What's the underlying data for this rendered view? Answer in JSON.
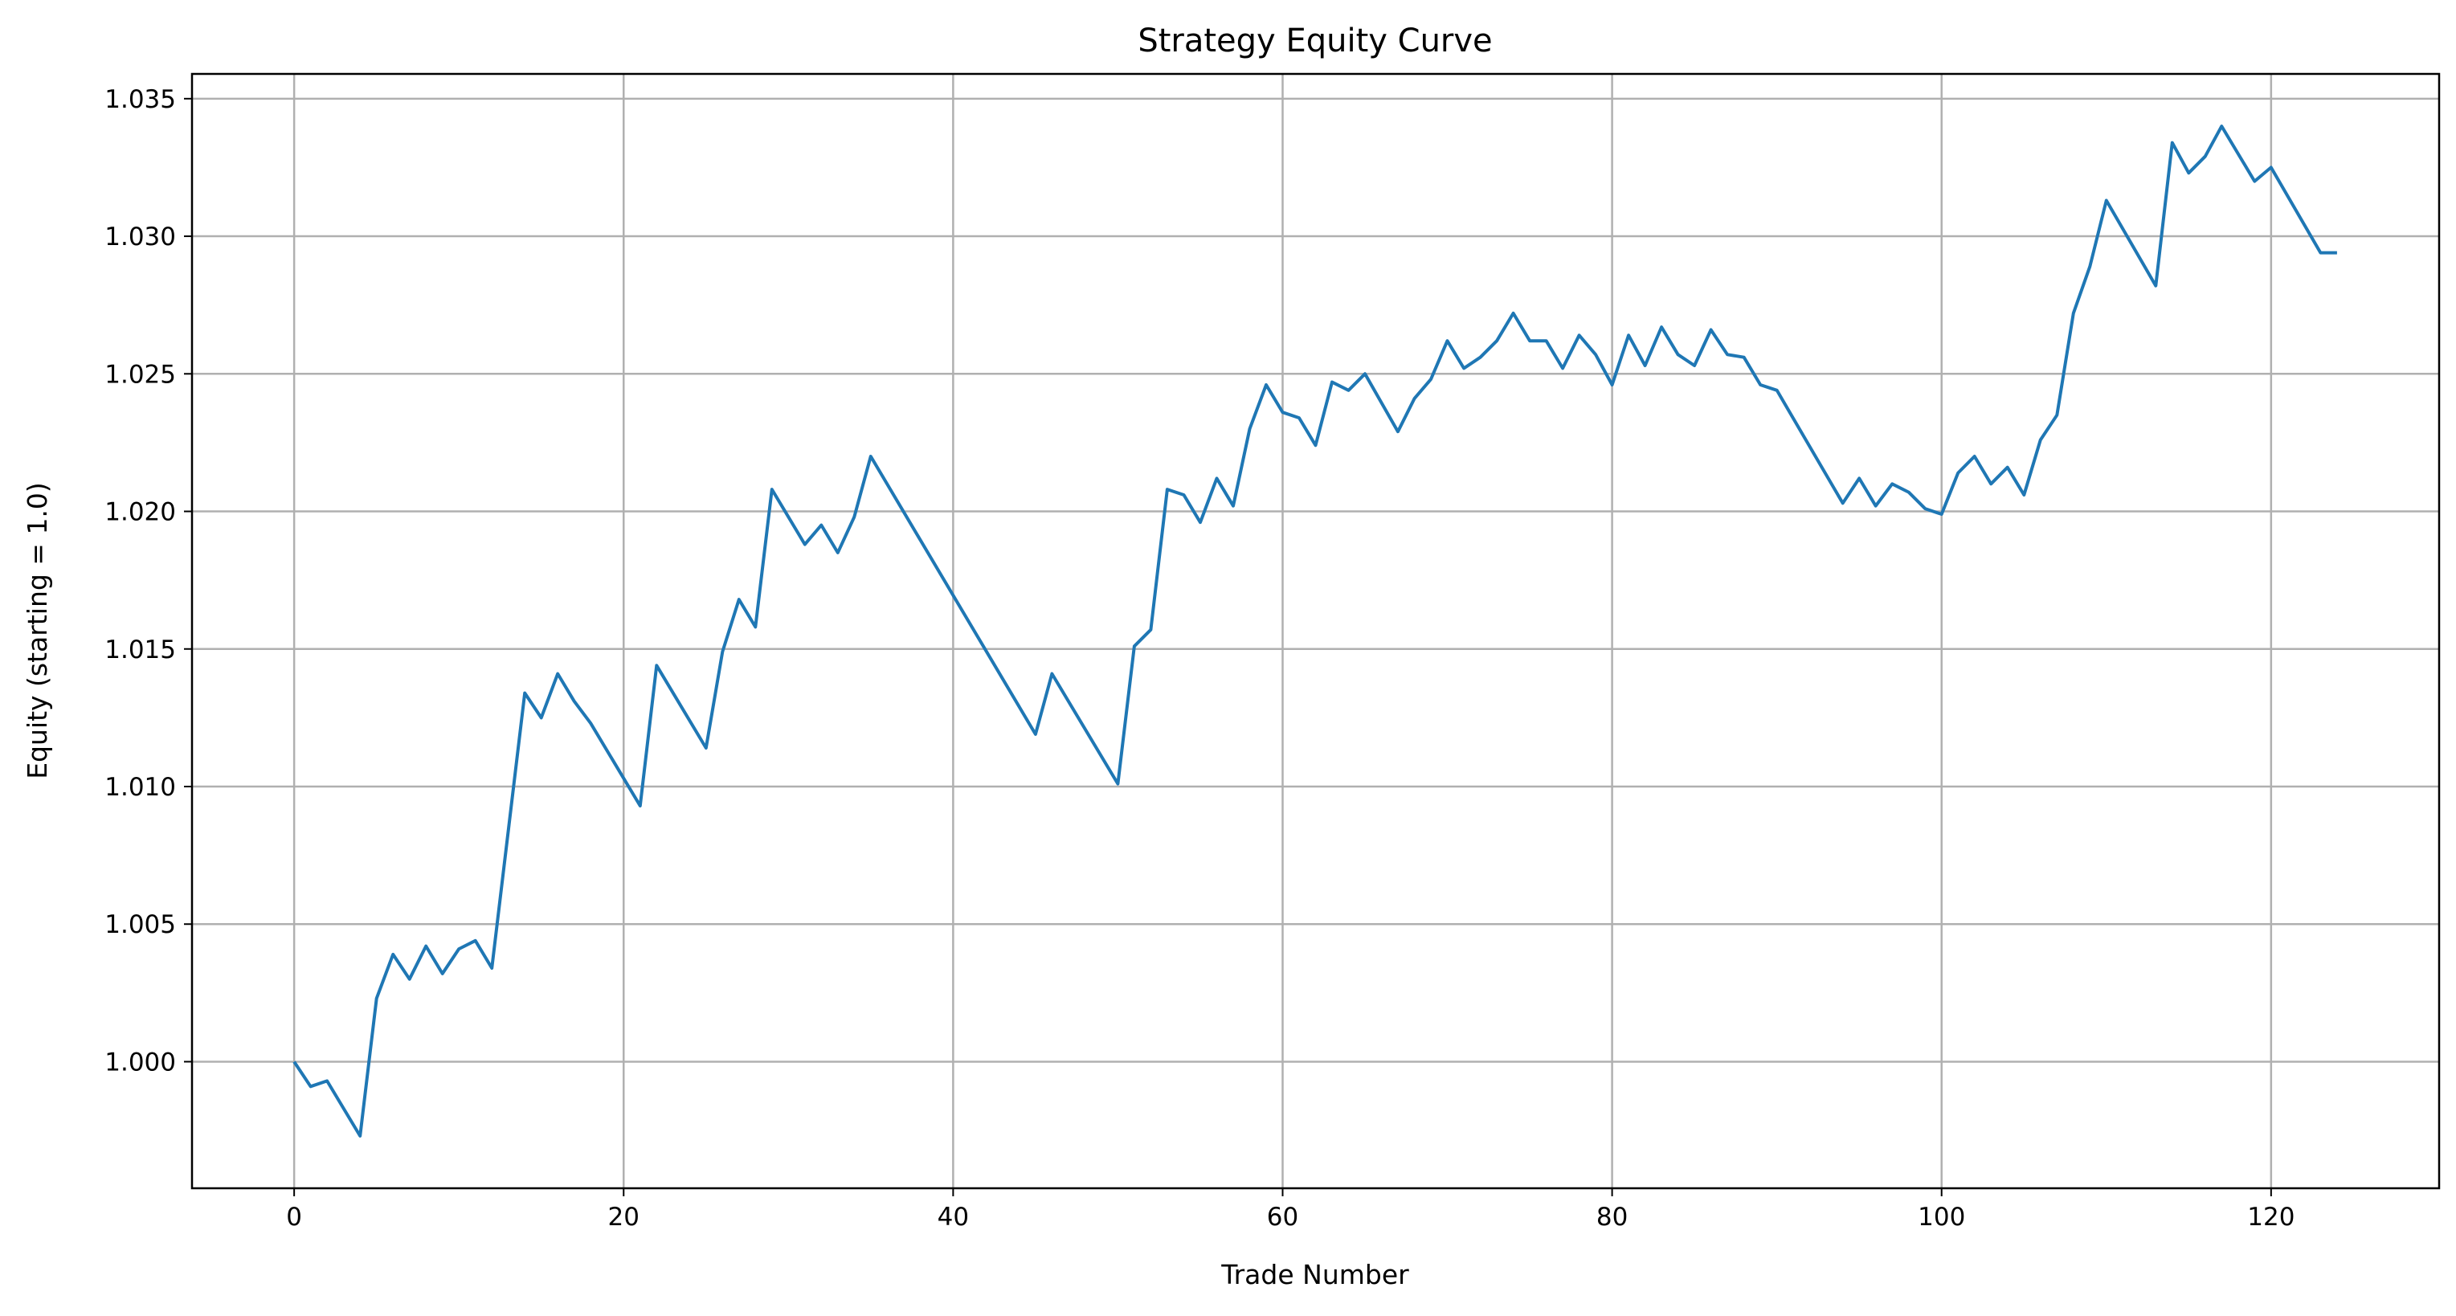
{
  "chart_data": {
    "type": "line",
    "title": "Strategy Equity Curve",
    "xlabel": "Trade Number",
    "ylabel": "Equity (starting = 1.0)",
    "xlim": [
      -6.2,
      130.2
    ],
    "ylim": [
      0.9954,
      1.0359
    ],
    "x_ticks": [
      0,
      20,
      40,
      60,
      80,
      100,
      120
    ],
    "x_tick_labels": [
      "0",
      "20",
      "40",
      "60",
      "80",
      "100",
      "120"
    ],
    "y_ticks": [
      1.0,
      1.005,
      1.01,
      1.015,
      1.02,
      1.025,
      1.03,
      1.035
    ],
    "y_tick_labels": [
      "1.000",
      "1.005",
      "1.010",
      "1.015",
      "1.020",
      "1.025",
      "1.030",
      "1.035"
    ],
    "grid": true,
    "colors": {
      "line": "#1f77b4",
      "grid": "#b0b0b0",
      "axes": "#000000"
    },
    "series": [
      {
        "x": [
          0,
          1,
          2,
          4,
          5,
          6,
          7,
          8,
          9,
          10,
          11,
          12,
          14,
          15,
          16,
          17,
          18,
          21,
          22,
          25,
          26,
          27,
          28,
          29,
          31,
          32,
          33,
          34,
          35,
          45,
          46,
          50,
          51,
          52,
          53,
          54,
          55,
          56,
          57,
          58,
          59,
          60,
          61,
          62,
          63,
          64,
          65,
          67,
          68,
          69,
          70,
          71,
          72,
          73,
          74,
          75,
          76,
          77,
          78,
          79,
          80,
          81,
          82,
          83,
          84,
          85,
          86,
          87,
          88,
          89,
          90,
          94,
          95,
          96,
          97,
          98,
          99,
          100,
          101,
          102,
          103,
          104,
          105,
          106,
          107,
          108,
          109,
          110,
          113,
          114,
          115,
          116,
          117,
          119,
          120,
          123,
          124
        ],
        "values": [
          1.0,
          0.9991,
          0.9993,
          0.9973,
          1.0023,
          1.0039,
          1.003,
          1.0042,
          1.0032,
          1.0041,
          1.0044,
          1.0034,
          1.0134,
          1.0125,
          1.0141,
          1.0131,
          1.0123,
          1.0093,
          1.0144,
          1.0114,
          1.0149,
          1.0168,
          1.0158,
          1.0208,
          1.0188,
          1.0195,
          1.0185,
          1.0198,
          1.022,
          1.0119,
          1.0141,
          1.0101,
          1.0151,
          1.0157,
          1.0208,
          1.0206,
          1.0196,
          1.0212,
          1.0202,
          1.023,
          1.0246,
          1.0236,
          1.0234,
          1.0224,
          1.0247,
          1.0244,
          1.025,
          1.0229,
          1.0241,
          1.0248,
          1.0262,
          1.0252,
          1.0256,
          1.0262,
          1.0272,
          1.0262,
          1.0262,
          1.0252,
          1.0264,
          1.0257,
          1.0246,
          1.0264,
          1.0253,
          1.0267,
          1.0257,
          1.0253,
          1.0266,
          1.0257,
          1.0256,
          1.0246,
          1.0244,
          1.0203,
          1.0212,
          1.0202,
          1.021,
          1.0207,
          1.0201,
          1.0199,
          1.0214,
          1.022,
          1.021,
          1.0216,
          1.0206,
          1.0226,
          1.0235,
          1.0272,
          1.0289,
          1.0313,
          1.0282,
          1.0334,
          1.0323,
          1.0329,
          1.034,
          1.032,
          1.0325,
          1.0294,
          1.0294
        ]
      }
    ]
  }
}
